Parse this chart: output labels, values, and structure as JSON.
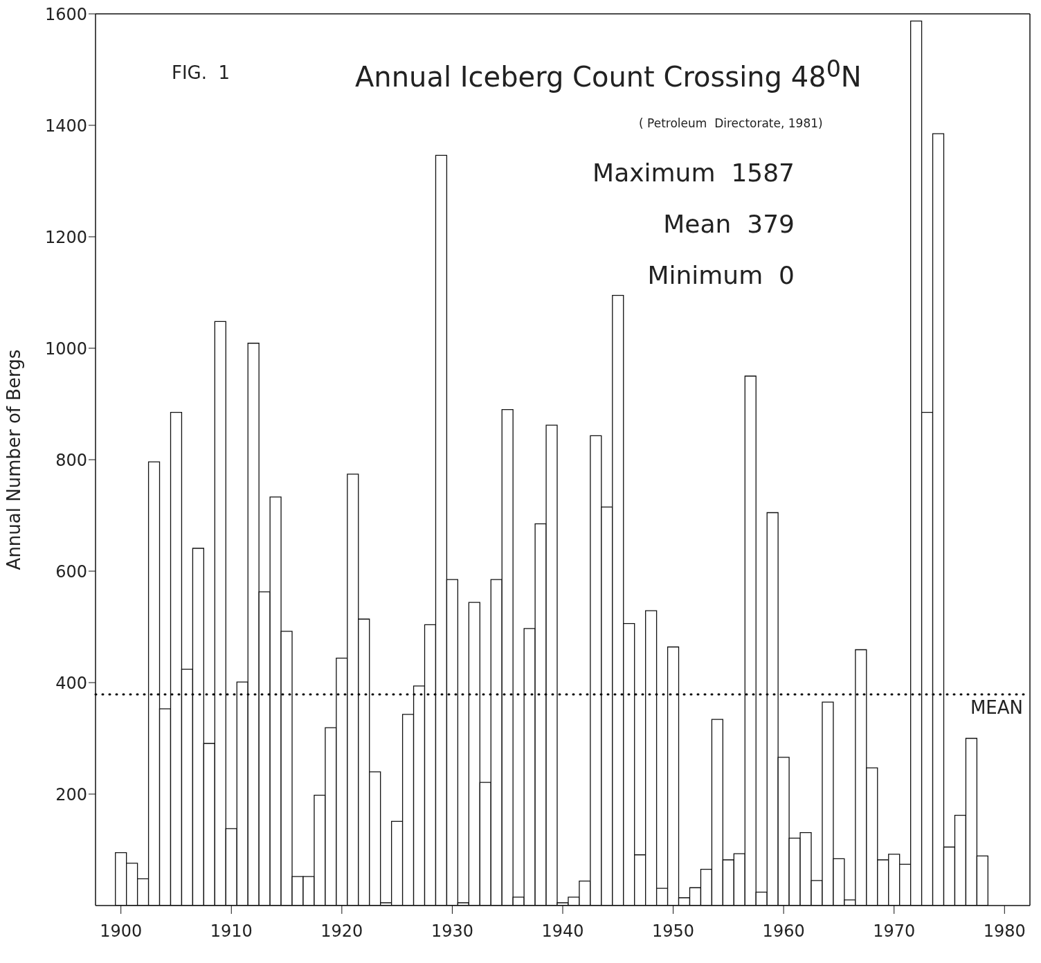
{
  "chart_data": {
    "type": "bar",
    "title": "Annual Iceberg Count Crossing 48$^{0}$N",
    "subtitle": "( Petroleum  Directorate, 1981)",
    "ylabel": "Annual Number of Bergs",
    "annotations": [
      "FIG.  1",
      "Maximum  1587",
      "Mean  379",
      "Minimum  0"
    ],
    "x": [
      1900,
      1901,
      1902,
      1903,
      1904,
      1905,
      1906,
      1907,
      1908,
      1909,
      1910,
      1911,
      1912,
      1913,
      1914,
      1915,
      1916,
      1917,
      1918,
      1919,
      1920,
      1921,
      1922,
      1923,
      1924,
      1925,
      1926,
      1927,
      1928,
      1929,
      1930,
      1931,
      1932,
      1933,
      1934,
      1935,
      1936,
      1937,
      1938,
      1939,
      1940,
      1941,
      1942,
      1943,
      1944,
      1945,
      1946,
      1947,
      1948,
      1949,
      1950,
      1951,
      1952,
      1953,
      1954,
      1955,
      1956,
      1957,
      1958,
      1959,
      1960,
      1961,
      1962,
      1963,
      1964,
      1965,
      1966,
      1967,
      1968,
      1969,
      1970,
      1971,
      1972,
      1973,
      1974,
      1975,
      1976,
      1977,
      1978
    ],
    "values": [
      95,
      76,
      48,
      796,
      353,
      885,
      424,
      641,
      291,
      1048,
      138,
      401,
      1009,
      563,
      733,
      492,
      52,
      52,
      198,
      319,
      444,
      774,
      514,
      240,
      5,
      151,
      343,
      394,
      504,
      1346,
      585,
      5,
      544,
      221,
      585,
      890,
      15,
      497,
      685,
      862,
      5,
      15,
      44,
      843,
      715,
      1095,
      506,
      91,
      529,
      31,
      464,
      14,
      32,
      65,
      334,
      82,
      93,
      950,
      24,
      705,
      266,
      121,
      131,
      45,
      365,
      84,
      10,
      459,
      247,
      82,
      92,
      74,
      1587,
      885,
      1385,
      105,
      162,
      300,
      89
    ],
    "color": "#ffffff",
    "xlim": [
      1897.7,
      1982.3
    ],
    "xticks": [
      1900,
      1910,
      1920,
      1930,
      1940,
      1950,
      1960,
      1970,
      1980
    ],
    "ylim": [
      0,
      1600
    ],
    "yticks": [
      200,
      400,
      600,
      800,
      1000,
      1200,
      1400,
      1600
    ],
    "ref_lines": [
      {
        "axis": "y",
        "value": 379,
        "label": "MEAN",
        "color": "#000000",
        "line_style": "dotted"
      }
    ],
    "grid": false,
    "legend": false
  }
}
